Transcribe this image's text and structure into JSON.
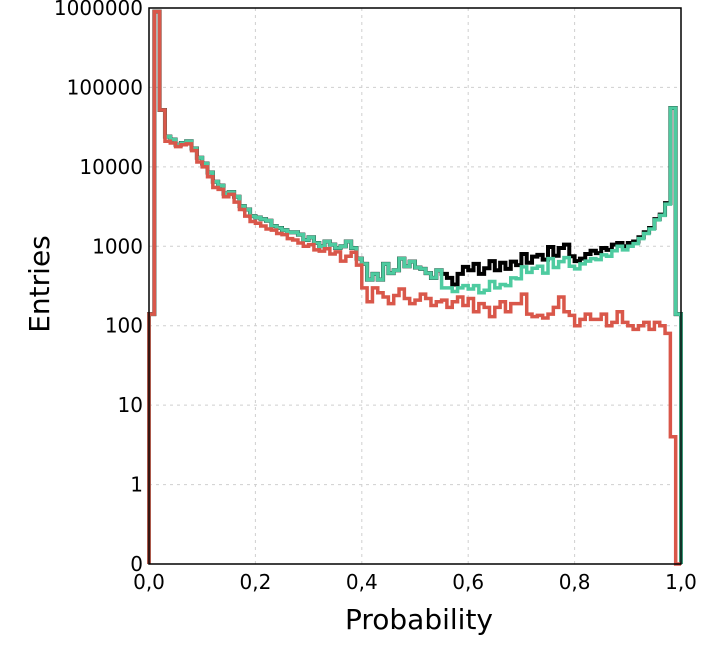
{
  "chart_data": {
    "type": "line",
    "xlabel": "Probability",
    "ylabel": "Entries",
    "xlim": [
      0,
      1.0
    ],
    "ylim": [
      0,
      1000000
    ],
    "yscale": "log",
    "grid": true,
    "x_ticks": [
      {
        "value": 0.0,
        "label": "0,0"
      },
      {
        "value": 0.2,
        "label": "0,2"
      },
      {
        "value": 0.4,
        "label": "0,4"
      },
      {
        "value": 0.6,
        "label": "0,6"
      },
      {
        "value": 0.8,
        "label": "0,8"
      },
      {
        "value": 1.0,
        "label": "1,0"
      }
    ],
    "y_ticks": [
      {
        "value": 0,
        "label": "0"
      },
      {
        "value": 1,
        "label": "1"
      },
      {
        "value": 10,
        "label": "10"
      },
      {
        "value": 100,
        "label": "100"
      },
      {
        "value": 1000,
        "label": "1000"
      },
      {
        "value": 10000,
        "label": "10000"
      },
      {
        "value": 100000,
        "label": "100000"
      },
      {
        "value": 1000000,
        "label": "1000000"
      }
    ],
    "x": [
      0.0,
      0.01,
      0.02,
      0.03,
      0.04,
      0.05,
      0.06,
      0.07,
      0.08,
      0.09,
      0.1,
      0.11,
      0.12,
      0.13,
      0.14,
      0.15,
      0.16,
      0.17,
      0.18,
      0.19,
      0.2,
      0.21,
      0.22,
      0.23,
      0.24,
      0.25,
      0.26,
      0.27,
      0.28,
      0.29,
      0.3,
      0.31,
      0.32,
      0.33,
      0.34,
      0.35,
      0.36,
      0.37,
      0.38,
      0.39,
      0.4,
      0.41,
      0.42,
      0.43,
      0.44,
      0.45,
      0.46,
      0.47,
      0.48,
      0.49,
      0.5,
      0.51,
      0.52,
      0.53,
      0.54,
      0.55,
      0.56,
      0.57,
      0.58,
      0.59,
      0.6,
      0.61,
      0.62,
      0.63,
      0.64,
      0.65,
      0.66,
      0.67,
      0.68,
      0.69,
      0.7,
      0.71,
      0.72,
      0.73,
      0.74,
      0.75,
      0.76,
      0.77,
      0.78,
      0.79,
      0.8,
      0.81,
      0.82,
      0.83,
      0.84,
      0.85,
      0.86,
      0.87,
      0.88,
      0.89,
      0.9,
      0.91,
      0.92,
      0.93,
      0.94,
      0.95,
      0.96,
      0.97,
      0.98,
      0.99
    ],
    "bin_width": 0.01,
    "series": [
      {
        "color": "#000000",
        "values": [
          140,
          900000,
          52000,
          24000,
          22000,
          19000,
          20000,
          21000,
          17000,
          13000,
          11000,
          8500,
          6500,
          5800,
          4600,
          4800,
          4200,
          3200,
          2900,
          2400,
          2300,
          2200,
          2100,
          1800,
          1700,
          1600,
          1500,
          1500,
          1400,
          1200,
          1300,
          1100,
          1000,
          1150,
          1050,
          950,
          1000,
          1150,
          950,
          700,
          600,
          380,
          450,
          380,
          600,
          460,
          500,
          700,
          560,
          640,
          540,
          520,
          460,
          400,
          500,
          450,
          400,
          330,
          450,
          550,
          500,
          600,
          450,
          530,
          650,
          500,
          620,
          520,
          640,
          580,
          800,
          620,
          740,
          780,
          680,
          980,
          760,
          950,
          1050,
          750,
          650,
          700,
          800,
          880,
          820,
          950,
          900,
          1050,
          1100,
          1000,
          1100,
          1150,
          1300,
          1500,
          1700,
          2200,
          2500,
          3500,
          55000,
          140
        ]
      },
      {
        "color": "#4ecba0",
        "values": [
          140,
          900000,
          52000,
          24000,
          22000,
          19000,
          20000,
          21000,
          17000,
          13000,
          11000,
          8500,
          6500,
          5800,
          4600,
          4800,
          4200,
          3200,
          2900,
          2400,
          2300,
          2200,
          2100,
          1800,
          1700,
          1600,
          1500,
          1500,
          1400,
          1200,
          1300,
          1100,
          1000,
          1150,
          1050,
          950,
          1000,
          1150,
          950,
          700,
          600,
          380,
          450,
          380,
          600,
          460,
          500,
          700,
          560,
          640,
          540,
          520,
          460,
          400,
          500,
          300,
          300,
          270,
          300,
          320,
          290,
          320,
          260,
          280,
          360,
          300,
          330,
          320,
          400,
          390,
          550,
          470,
          530,
          560,
          460,
          700,
          540,
          640,
          720,
          560,
          520,
          600,
          650,
          700,
          680,
          780,
          750,
          880,
          1000,
          900,
          1000,
          1080,
          1250,
          1450,
          1650,
          2150,
          2450,
          3400,
          55000,
          140
        ]
      },
      {
        "color": "#d9574a",
        "values": [
          140,
          900000,
          52000,
          21000,
          20000,
          18000,
          19000,
          19500,
          16000,
          11500,
          10000,
          7500,
          5500,
          5200,
          4200,
          4500,
          3600,
          2900,
          2400,
          2050,
          1950,
          1800,
          1650,
          1600,
          1450,
          1400,
          1250,
          1200,
          1100,
          1000,
          1050,
          900,
          870,
          930,
          800,
          850,
          650,
          750,
          840,
          580,
          300,
          200,
          300,
          260,
          230,
          190,
          240,
          290,
          220,
          190,
          210,
          250,
          220,
          180,
          200,
          210,
          170,
          200,
          230,
          180,
          220,
          150,
          190,
          170,
          130,
          170,
          200,
          150,
          190,
          190,
          250,
          140,
          130,
          135,
          125,
          140,
          170,
          230,
          150,
          135,
          100,
          120,
          140,
          120,
          120,
          140,
          100,
          110,
          150,
          110,
          100,
          90,
          100,
          110,
          90,
          110,
          100,
          80,
          4,
          0
        ]
      }
    ]
  }
}
